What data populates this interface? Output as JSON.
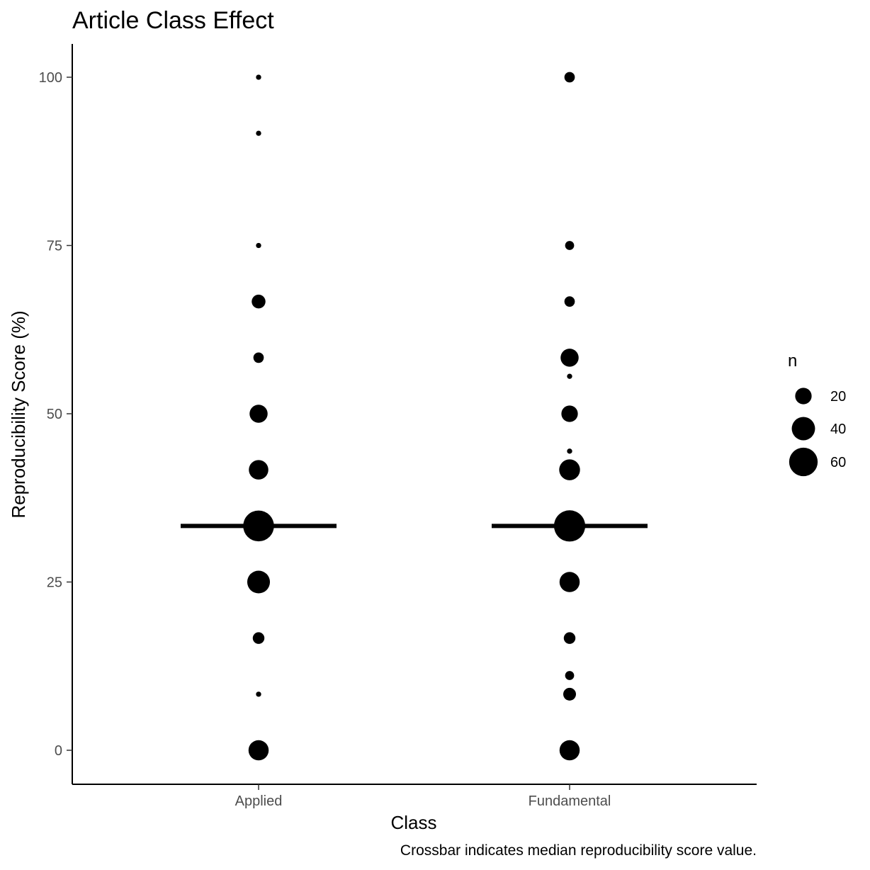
{
  "chart_data": {
    "type": "scatter",
    "title": "Article Class Effect",
    "xlabel": "Class",
    "ylabel": "Reproducibility Score (%)",
    "caption": "Crossbar indicates median reproducibility score value.",
    "categories": [
      "Applied",
      "Fundamental"
    ],
    "ylim": [
      -5,
      105
    ],
    "yticks": [
      0,
      25,
      50,
      75,
      100
    ],
    "grid": false,
    "legend": {
      "title": "n",
      "position": "right",
      "entries": [
        {
          "label": "20",
          "n": 20
        },
        {
          "label": "40",
          "n": 40
        },
        {
          "label": "60",
          "n": 60
        }
      ]
    },
    "series": [
      {
        "category": "Applied",
        "median": 33.33,
        "points": [
          {
            "y": 100,
            "n": 2
          },
          {
            "y": 91.67,
            "n": 2
          },
          {
            "y": 75,
            "n": 2
          },
          {
            "y": 66.67,
            "n": 14
          },
          {
            "y": 58.33,
            "n": 8
          },
          {
            "y": 50,
            "n": 24
          },
          {
            "y": 41.67,
            "n": 28
          },
          {
            "y": 33.33,
            "n": 70
          },
          {
            "y": 25,
            "n": 38
          },
          {
            "y": 16.67,
            "n": 10
          },
          {
            "y": 8.33,
            "n": 2
          },
          {
            "y": 0,
            "n": 30
          }
        ]
      },
      {
        "category": "Fundamental",
        "median": 33.33,
        "points": [
          {
            "y": 100,
            "n": 8
          },
          {
            "y": 75,
            "n": 6
          },
          {
            "y": 66.67,
            "n": 8
          },
          {
            "y": 58.33,
            "n": 24
          },
          {
            "y": 55.56,
            "n": 2
          },
          {
            "y": 50,
            "n": 20
          },
          {
            "y": 44.44,
            "n": 2
          },
          {
            "y": 41.67,
            "n": 32
          },
          {
            "y": 33.33,
            "n": 72
          },
          {
            "y": 25,
            "n": 30
          },
          {
            "y": 16.67,
            "n": 10
          },
          {
            "y": 11.11,
            "n": 6
          },
          {
            "y": 8.33,
            "n": 12
          },
          {
            "y": 0,
            "n": 30
          }
        ]
      }
    ]
  },
  "colors": {
    "points": "#000000",
    "axis": "#000000",
    "tick_label": "#4d4d4d",
    "background": "#ffffff"
  }
}
